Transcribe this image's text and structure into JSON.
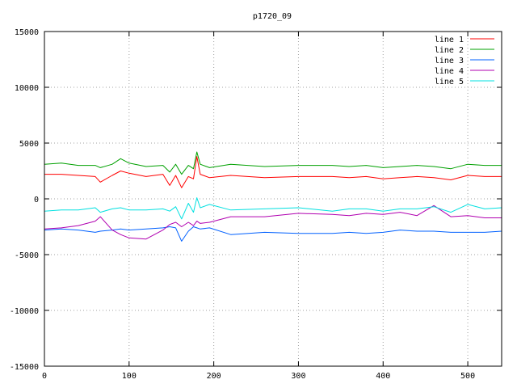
{
  "chart_data": {
    "type": "line",
    "title": "p1720_09",
    "xlabel": "",
    "ylabel": "",
    "xlim": [
      0,
      540
    ],
    "ylim": [
      -15000,
      15000
    ],
    "x_ticks": [
      0,
      100,
      200,
      300,
      400,
      500
    ],
    "y_ticks": [
      -15000,
      -10000,
      -5000,
      0,
      5000,
      10000,
      15000
    ],
    "grid": true,
    "legend_position": "top-right",
    "x": [
      0,
      20,
      40,
      60,
      66,
      80,
      90,
      100,
      120,
      140,
      148,
      155,
      162,
      170,
      176,
      180,
      184,
      195,
      220,
      260,
      300,
      340,
      360,
      380,
      400,
      420,
      440,
      460,
      480,
      500,
      520,
      540
    ],
    "series": [
      {
        "name": "line 1",
        "color": "#ff0000",
        "values": [
          2200,
          2200,
          2100,
          2000,
          1500,
          2100,
          2500,
          2300,
          2000,
          2200,
          1200,
          2100,
          1000,
          2000,
          1800,
          3800,
          2200,
          1900,
          2100,
          1900,
          2000,
          2000,
          1900,
          2000,
          1800,
          1900,
          2000,
          1900,
          1700,
          2100,
          2000,
          2000
        ]
      },
      {
        "name": "line 2",
        "color": "#00a000",
        "values": [
          3100,
          3200,
          3000,
          3000,
          2800,
          3100,
          3600,
          3200,
          2900,
          3000,
          2400,
          3100,
          2200,
          3000,
          2700,
          4200,
          3100,
          2800,
          3100,
          2900,
          3000,
          3000,
          2900,
          3000,
          2800,
          2900,
          3000,
          2900,
          2700,
          3100,
          3000,
          3000
        ]
      },
      {
        "name": "line 3",
        "color": "#0060ff",
        "values": [
          -2800,
          -2700,
          -2800,
          -3000,
          -2900,
          -2800,
          -2700,
          -2800,
          -2700,
          -2600,
          -2500,
          -2600,
          -3800,
          -2900,
          -2500,
          -2600,
          -2700,
          -2600,
          -3200,
          -3000,
          -3100,
          -3100,
          -3000,
          -3100,
          -3000,
          -2800,
          -2900,
          -2900,
          -3000,
          -3000,
          -3000,
          -2900
        ]
      },
      {
        "name": "line 4",
        "color": "#b000b0",
        "values": [
          -2700,
          -2600,
          -2400,
          -2000,
          -1600,
          -2800,
          -3200,
          -3500,
          -3600,
          -2800,
          -2300,
          -2100,
          -2500,
          -2100,
          -2400,
          -2000,
          -2200,
          -2100,
          -1600,
          -1600,
          -1300,
          -1400,
          -1500,
          -1300,
          -1400,
          -1200,
          -1500,
          -600,
          -1600,
          -1500,
          -1700,
          -1700
        ]
      },
      {
        "name": "line 5",
        "color": "#00e0e0",
        "values": [
          -1100,
          -1000,
          -1000,
          -800,
          -1200,
          -900,
          -800,
          -1000,
          -1000,
          -900,
          -1100,
          -700,
          -1800,
          -400,
          -1200,
          100,
          -800,
          -500,
          -1000,
          -900,
          -800,
          -1100,
          -900,
          -900,
          -1100,
          -900,
          -900,
          -700,
          -1200,
          -500,
          -900,
          -800
        ]
      }
    ]
  }
}
